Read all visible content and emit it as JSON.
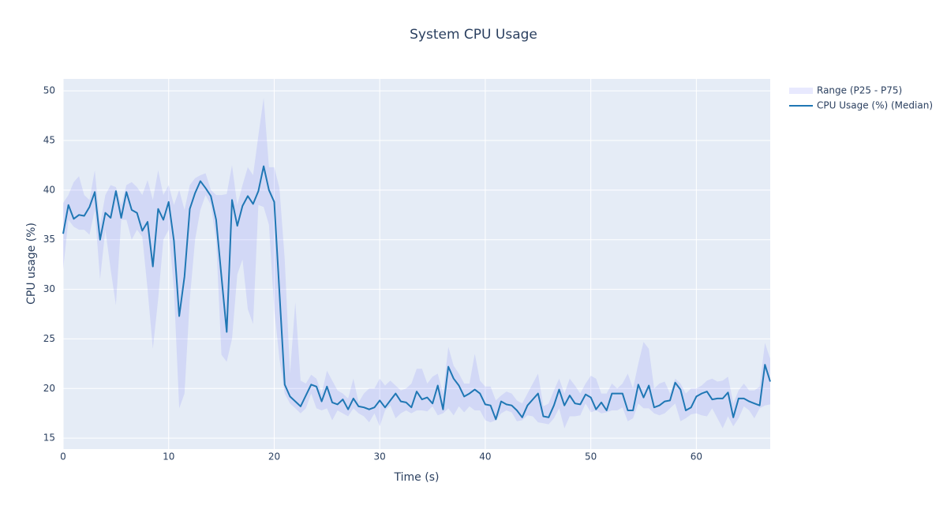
{
  "chart_data": {
    "type": "line",
    "title": "System CPU Usage",
    "x_label": "Time (s)",
    "y_label": "CPU usage (%)",
    "x": [
      0,
      0.5,
      1,
      1.5,
      2,
      2.5,
      3,
      3.5,
      4,
      4.5,
      5,
      5.5,
      6,
      6.5,
      7,
      7.5,
      8,
      8.5,
      9,
      9.5,
      10,
      10.5,
      11,
      11.5,
      12,
      12.5,
      13,
      13.5,
      14,
      14.5,
      15,
      15.5,
      16,
      16.5,
      17,
      17.5,
      18,
      18.5,
      19,
      19.5,
      20,
      20.5,
      21,
      21.5,
      22,
      22.5,
      23,
      23.5,
      24,
      24.5,
      25,
      25.5,
      26,
      26.5,
      27,
      27.5,
      28,
      28.5,
      29,
      29.5,
      30,
      30.5,
      31,
      31.5,
      32,
      32.5,
      33,
      33.5,
      34,
      34.5,
      35,
      35.5,
      36,
      36.5,
      37,
      37.5,
      38,
      38.5,
      39,
      39.5,
      40,
      40.5,
      41,
      41.5,
      42,
      42.5,
      43,
      43.5,
      44,
      44.5,
      45,
      45.5,
      46,
      46.5,
      47,
      47.5,
      48,
      48.5,
      49,
      49.5,
      50,
      50.5,
      51,
      51.5,
      52,
      52.5,
      53,
      53.5,
      54,
      54.5,
      55,
      55.5,
      56,
      56.5,
      57,
      57.5,
      58,
      58.5,
      59,
      59.5,
      60,
      60.5,
      61,
      61.5,
      62,
      62.5,
      63,
      63.5,
      64,
      64.5,
      65,
      65.5,
      66,
      66.5,
      67
    ],
    "series": [
      {
        "name": "Range (P25 - P75)",
        "color": "rgba(99,110,250,0.15)",
        "upper": [
          38.7,
          39.5,
          40.8,
          41.4,
          39.5,
          39.0,
          42.0,
          36.5,
          39.5,
          40.5,
          40.3,
          38.5,
          40.5,
          40.8,
          40.3,
          39.5,
          41.0,
          39.0,
          42.0,
          39.5,
          40.5,
          38.5,
          40.0,
          38.0,
          40.5,
          41.2,
          41.5,
          41.7,
          40.0,
          39.5,
          39.5,
          39.6,
          42.5,
          38.5,
          40.5,
          42.3,
          41.5,
          45.5,
          49.3,
          42.3,
          42.3,
          40.2,
          33.0,
          21.5,
          28.7,
          20.8,
          20.5,
          21.4,
          21.0,
          19.5,
          21.8,
          20.8,
          19.8,
          19.5,
          19.0,
          21.0,
          18.6,
          19.5,
          20.0,
          20.0,
          21.0,
          20.3,
          20.8,
          20.3,
          19.8,
          20.0,
          20.5,
          22.0,
          22.0,
          20.5,
          21.2,
          21.5,
          19.5,
          24.2,
          22.3,
          21.5,
          20.5,
          20.5,
          23.5,
          20.8,
          20.2,
          20.2,
          18.8,
          19.3,
          19.7,
          19.5,
          18.8,
          18.5,
          19.5,
          20.5,
          21.5,
          18.2,
          18.5,
          19.8,
          21.0,
          19.5,
          21.0,
          20.3,
          19.5,
          20.5,
          21.3,
          21.0,
          19.5,
          19.5,
          20.5,
          20.0,
          20.5,
          21.5,
          20.0,
          22.5,
          24.7,
          24.0,
          20.0,
          20.5,
          20.7,
          19.5,
          21.0,
          20.5,
          19.5,
          20.0,
          20.0,
          20.3,
          20.8,
          21.0,
          20.7,
          20.8,
          21.2,
          18.5,
          19.8,
          20.5,
          19.8,
          19.8,
          20.2,
          24.6,
          23.0
        ],
        "lower": [
          32.0,
          37.0,
          36.3,
          36.0,
          36.0,
          35.5,
          38.0,
          31.0,
          36.0,
          32.0,
          28.4,
          37.0,
          37.0,
          35.0,
          36.0,
          35.3,
          30.0,
          24.0,
          29.0,
          35.0,
          36.0,
          30.0,
          18.0,
          19.5,
          29.0,
          35.0,
          38.0,
          39.5,
          38.5,
          35.0,
          23.4,
          22.7,
          25.0,
          31.5,
          33.0,
          28.0,
          26.5,
          38.5,
          38.3,
          36.5,
          28.0,
          23.0,
          19.5,
          18.5,
          18.0,
          17.5,
          18.0,
          19.5,
          18.0,
          17.8,
          18.0,
          16.8,
          17.8,
          17.5,
          17.2,
          18.0,
          17.5,
          17.2,
          16.6,
          17.5,
          16.2,
          17.8,
          18.3,
          17.0,
          17.5,
          17.8,
          17.5,
          17.8,
          17.8,
          17.7,
          18.2,
          17.3,
          17.5,
          18.0,
          17.3,
          18.2,
          17.6,
          18.2,
          17.8,
          17.8,
          16.8,
          16.6,
          16.8,
          17.5,
          17.8,
          17.6,
          16.7,
          16.8,
          17.3,
          17.2,
          16.6,
          16.5,
          16.4,
          17.0,
          18.0,
          16.0,
          17.2,
          17.2,
          17.3,
          18.5,
          17.6,
          17.8,
          17.5,
          17.6,
          17.8,
          17.8,
          18.1,
          16.7,
          17.0,
          18.5,
          18.0,
          18.0,
          17.5,
          17.3,
          17.5,
          18.0,
          18.5,
          16.7,
          17.0,
          17.4,
          17.5,
          17.3,
          17.2,
          18.0,
          17.0,
          16.0,
          17.2,
          16.2,
          17.0,
          18.2,
          17.8,
          17.0,
          18.0,
          18.3,
          18.4
        ]
      },
      {
        "name": "CPU Usage (%) (Median)",
        "color": "#1f77b4",
        "values": [
          35.6,
          38.5,
          37.1,
          37.5,
          37.4,
          38.3,
          39.8,
          35.0,
          37.7,
          37.2,
          39.9,
          37.2,
          39.8,
          38.0,
          37.7,
          35.9,
          36.8,
          32.3,
          38.1,
          37.0,
          38.8,
          34.9,
          27.3,
          31.3,
          38.1,
          39.7,
          40.9,
          40.2,
          39.4,
          37.0,
          31.3,
          25.7,
          39.0,
          36.4,
          38.4,
          39.4,
          38.6,
          39.9,
          42.4,
          40.0,
          38.8,
          29.7,
          20.4,
          19.2,
          18.7,
          18.2,
          19.3,
          20.4,
          20.2,
          18.7,
          20.2,
          18.6,
          18.4,
          18.9,
          17.9,
          19.0,
          18.2,
          18.1,
          17.9,
          18.1,
          18.8,
          18.1,
          18.8,
          19.5,
          18.7,
          18.6,
          18.1,
          19.7,
          18.9,
          19.1,
          18.5,
          20.3,
          17.9,
          22.2,
          21.0,
          20.3,
          19.2,
          19.5,
          19.9,
          19.5,
          18.4,
          18.3,
          16.9,
          18.7,
          18.4,
          18.3,
          17.8,
          17.1,
          18.3,
          18.9,
          19.5,
          17.2,
          17.1,
          18.3,
          19.9,
          18.3,
          19.3,
          18.5,
          18.4,
          19.4,
          19.1,
          17.9,
          18.6,
          17.8,
          19.5,
          19.5,
          19.5,
          17.8,
          17.8,
          20.4,
          19.1,
          20.3,
          18.1,
          18.3,
          18.7,
          18.8,
          20.6,
          19.9,
          17.8,
          18.1,
          19.2,
          19.5,
          19.7,
          18.9,
          19.0,
          19.0,
          19.6,
          17.1,
          19.0,
          19.0,
          18.7,
          18.5,
          18.3,
          22.4,
          20.7
        ]
      }
    ],
    "xlim": [
      0,
      67
    ],
    "xticks": [
      0,
      10,
      20,
      30,
      40,
      50,
      60
    ],
    "ylim": [
      13.9,
      51.2
    ],
    "yticks": [
      15,
      20,
      25,
      30,
      35,
      40,
      45,
      50
    ],
    "grid": true,
    "legend": "right"
  }
}
